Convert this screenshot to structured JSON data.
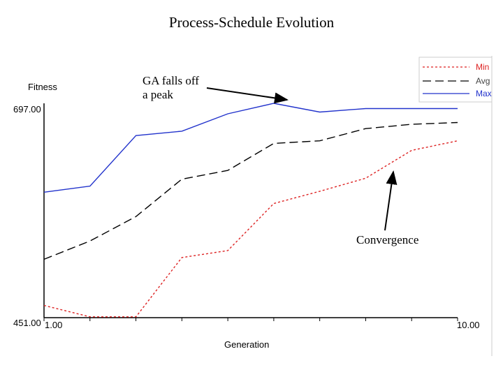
{
  "chart_data": {
    "type": "line",
    "title": "Process-Schedule Evolution",
    "ylabel": "Fitness",
    "xlabel": "Generation",
    "ylim": [
      451,
      697
    ],
    "xlim": [
      1,
      10
    ],
    "y_tick_labels": [
      "697.00",
      "451.00"
    ],
    "x_tick_labels": [
      "1.00",
      "10.00"
    ],
    "x": [
      1,
      2,
      3,
      4,
      5,
      6,
      7,
      8,
      9,
      10
    ],
    "series": [
      {
        "name": "Min",
        "color": "#dd2222",
        "dash": "dotted",
        "values": [
          465,
          452,
          452,
          520,
          528,
          582,
          596,
          611,
          643,
          654
        ]
      },
      {
        "name": "Avg",
        "color": "#000000",
        "dash": "dashed",
        "values": [
          518,
          539,
          567,
          610,
          620,
          651,
          654,
          668,
          673,
          675
        ]
      },
      {
        "name": "Max",
        "color": "#2233cc",
        "dash": "solid",
        "values": [
          595,
          602,
          660,
          665,
          685,
          697,
          687,
          691,
          691,
          691
        ]
      }
    ],
    "annotations": [
      {
        "text": "GA falls off a peak",
        "line1": "GA falls off",
        "line2": "a peak"
      },
      {
        "text": "Convergence"
      }
    ],
    "legend_position": "top-right"
  }
}
